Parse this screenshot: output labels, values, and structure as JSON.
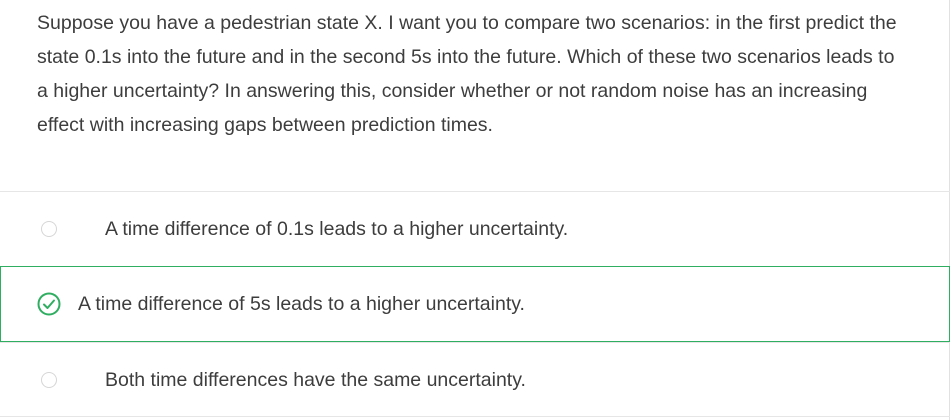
{
  "question": {
    "text": "Suppose you have a pedestrian state X. I want you to compare two scenarios: in the first predict the state 0.1s into the future and in the second 5s into the future. Which of these two scenarios leads to a higher uncertainty? In answering this, consider whether or not random noise has an increasing effect with increasing gaps between prediction times."
  },
  "options": [
    {
      "label": "A time difference of 0.1s leads to a higher uncertainty.",
      "selected": false,
      "icon": "radio-empty-icon"
    },
    {
      "label": "A time difference of 5s leads to a higher uncertainty.",
      "selected": true,
      "icon": "check-circle-icon"
    },
    {
      "label": "Both time differences have the same uncertainty.",
      "selected": false,
      "icon": "radio-empty-icon"
    }
  ],
  "colors": {
    "correct_accent": "#2fae61",
    "text": "#3d3d3d",
    "divider": "#e6e6e6"
  }
}
